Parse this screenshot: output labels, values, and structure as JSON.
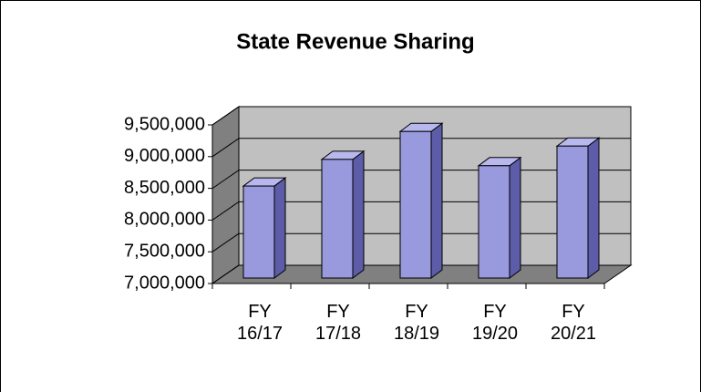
{
  "chart_data": {
    "type": "bar3d",
    "title": "State Revenue Sharing",
    "categories": [
      "FY 16/17",
      "FY 17/18",
      "FY 18/19",
      "FY 19/20",
      "FY 20/21"
    ],
    "values": [
      8450000,
      8870000,
      9310000,
      8770000,
      9080000
    ],
    "color": "#9999dd",
    "ylim": [
      7000000,
      9500000
    ],
    "yticks": [
      {
        "value": 7000000,
        "label": "7,000,000"
      },
      {
        "value": 7500000,
        "label": "7,500,000"
      },
      {
        "value": 8000000,
        "label": "8,000,000"
      },
      {
        "value": 8500000,
        "label": "8,500,000"
      },
      {
        "value": 9000000,
        "label": "9,000,000"
      },
      {
        "value": 9500000,
        "label": "9,500,000"
      }
    ],
    "grid": true
  }
}
